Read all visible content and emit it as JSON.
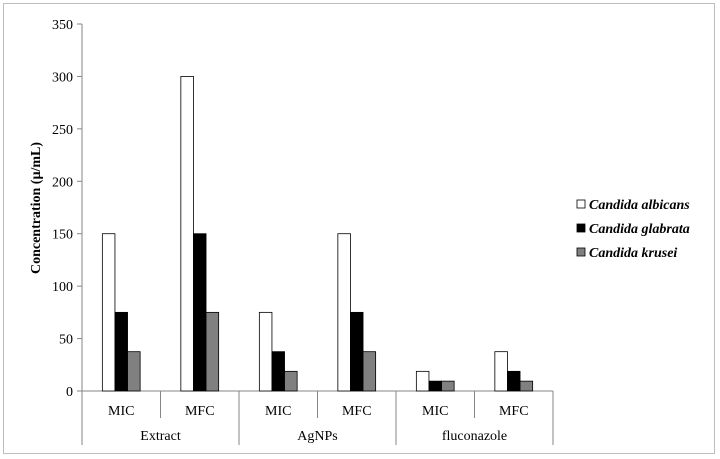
{
  "chart_data": {
    "type": "bar",
    "ylabel": "Concentration (µ/mL)",
    "xlabel": "",
    "ylim": [
      0,
      350
    ],
    "yticks": [
      0,
      50,
      100,
      150,
      200,
      250,
      300,
      350
    ],
    "grid": false,
    "legend_position": "right",
    "groups": [
      {
        "label": "Extract",
        "categories": [
          "MIC",
          "MFC"
        ]
      },
      {
        "label": "AgNPs",
        "categories": [
          "MIC",
          "MFC"
        ]
      },
      {
        "label": "fluconazole",
        "categories": [
          "MIC",
          "MFC"
        ]
      }
    ],
    "series": [
      {
        "name": "Candida albicans",
        "color": "#ffffff",
        "values": [
          150,
          300,
          75,
          150,
          18.75,
          37.5
        ]
      },
      {
        "name": "Candida  glabrata",
        "color": "#000000",
        "values": [
          75,
          150,
          37.5,
          75,
          9.4,
          18.75
        ]
      },
      {
        "name": "Candida krusei",
        "color": "#808080",
        "values": [
          37.5,
          75,
          18.75,
          37.5,
          9.4,
          9.4
        ]
      }
    ]
  }
}
